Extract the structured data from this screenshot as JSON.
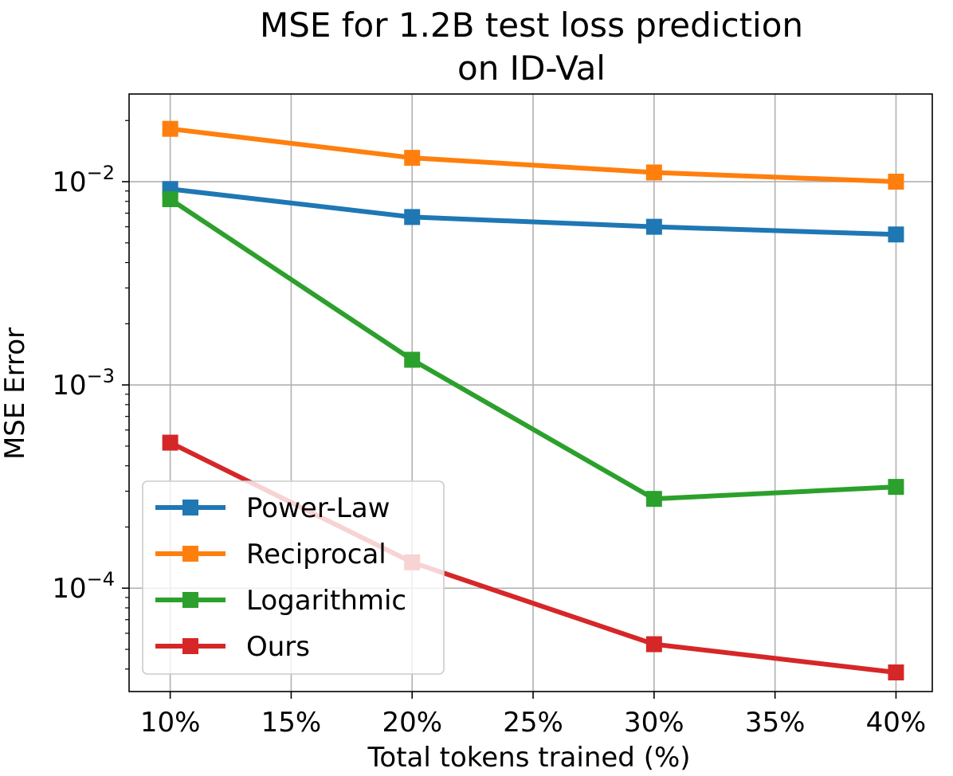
{
  "chart_data": {
    "type": "line",
    "title_lines": [
      "MSE for 1.2B test loss prediction",
      "on ID-Val"
    ],
    "xlabel": "Total tokens trained (%)",
    "ylabel": "MSE Error",
    "yscale": "log",
    "xlim": [
      8.3,
      41.5
    ],
    "ylim": [
      3.1e-05,
      0.027
    ],
    "grid": true,
    "legend_position": "lower-left",
    "x_ticks": [
      10,
      15,
      20,
      25,
      30,
      35,
      40
    ],
    "x_tick_labels": [
      "10%",
      "15%",
      "20%",
      "25%",
      "30%",
      "35%",
      "40%"
    ],
    "y_ticks": [
      {
        "value": 0.01,
        "base": "10",
        "exp": "−2"
      },
      {
        "value": 0.001,
        "base": "10",
        "exp": "−3"
      },
      {
        "value": 0.0001,
        "base": "10",
        "exp": "−4"
      }
    ],
    "x": [
      10,
      20,
      30,
      40
    ],
    "series": [
      {
        "name": "Power-Law",
        "color": "#1f77b4",
        "values": [
          0.0092,
          0.0067,
          0.006,
          0.0055
        ]
      },
      {
        "name": "Reciprocal",
        "color": "#ff7f0e",
        "values": [
          0.0182,
          0.0131,
          0.0111,
          0.01
        ]
      },
      {
        "name": "Logarithmic",
        "color": "#2ca02c",
        "values": [
          0.0082,
          0.00133,
          0.000275,
          0.000315
        ]
      },
      {
        "name": "Ours",
        "color": "#d62728",
        "values": [
          0.00052,
          0.000134,
          5.3e-05,
          3.85e-05
        ]
      }
    ]
  }
}
